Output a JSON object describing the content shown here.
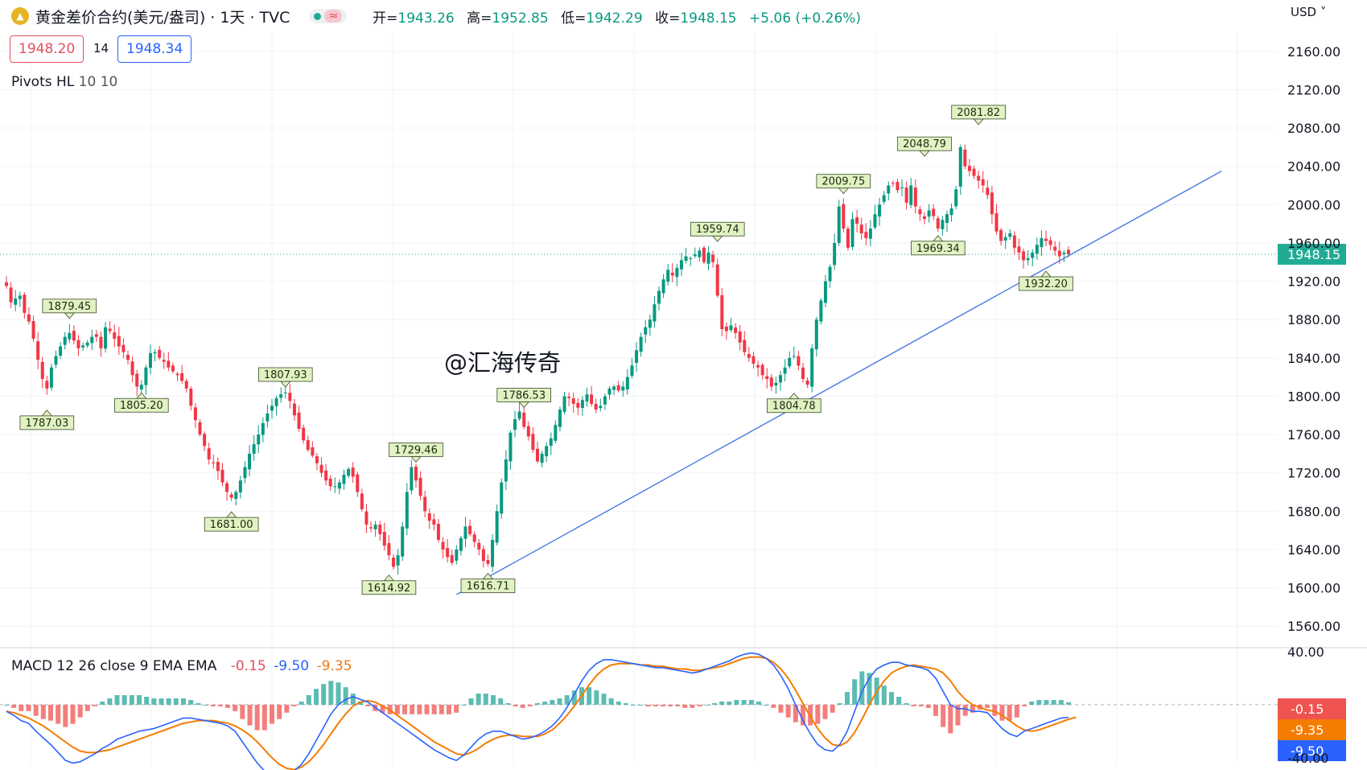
{
  "header": {
    "symbol_title": "黄金差价合约(美元/盎司) · 1天 · TVC",
    "logo_icon": "gold-coin-icon",
    "market_status_icon": "market-open-dot-icon",
    "wave_icon": "wave-icon",
    "open_label": "开=",
    "open_value": "1943.26",
    "high_label": "高=",
    "high_value": "1952.85",
    "low_label": "低=",
    "low_value": "1942.29",
    "close_label": "收=",
    "close_value": "1948.15",
    "change_value": "+5.06 (+0.26%)"
  },
  "trade": {
    "sell_price": "1948.20",
    "spread": "14",
    "buy_price": "1948.34"
  },
  "indicator": {
    "name": "Pivots HL",
    "params": "10 10"
  },
  "currency_menu": "USD ˅",
  "watermark": "@汇海传奇",
  "macd": {
    "label": "MACD 12 26 close 9 EMA EMA",
    "hist": "-0.15",
    "macd": "-9.50",
    "signal": "-9.35"
  },
  "colors": {
    "up": "#089981",
    "down": "#f23645",
    "macd_line": "#2962ff",
    "signal_line": "#f57c00",
    "trendline": "#3a6fe0",
    "pivot_bg": "#e1f2c3"
  },
  "chart_data": [
    {
      "type": "candlestick",
      "title": "黄金差价合约(美元/盎司) · 1天 · TVC",
      "ylim": [
        1540,
        2180
      ],
      "yticks": [
        "2160.00",
        "2120.00",
        "2080.00",
        "2040.00",
        "2000.00",
        "1960.00",
        "1920.00",
        "1880.00",
        "1840.00",
        "1800.00",
        "1760.00",
        "1720.00",
        "1680.00",
        "1640.00",
        "1600.00",
        "1560.00"
      ],
      "last_price": "1948.15",
      "close_path": [
        1915,
        1898,
        1902,
        1905,
        1887,
        1878,
        1860,
        1838,
        1818,
        1808,
        1830,
        1842,
        1852,
        1862,
        1866,
        1858,
        1850,
        1853,
        1856,
        1862,
        1862,
        1850,
        1872,
        1868,
        1860,
        1852,
        1846,
        1838,
        1822,
        1810,
        1812,
        1830,
        1845,
        1846,
        1840,
        1836,
        1830,
        1826,
        1822,
        1816,
        1808,
        1790,
        1775,
        1760,
        1748,
        1734,
        1730,
        1722,
        1710,
        1700,
        1694,
        1700,
        1712,
        1726,
        1740,
        1750,
        1760,
        1772,
        1782,
        1790,
        1798,
        1802,
        1804,
        1795,
        1780,
        1766,
        1754,
        1744,
        1738,
        1730,
        1720,
        1712,
        1706,
        1706,
        1710,
        1718,
        1724,
        1716,
        1700,
        1682,
        1666,
        1662,
        1666,
        1656,
        1644,
        1634,
        1622,
        1634,
        1664,
        1700,
        1726,
        1712,
        1696,
        1680,
        1670,
        1666,
        1650,
        1640,
        1632,
        1626,
        1640,
        1652,
        1664,
        1656,
        1648,
        1640,
        1628,
        1625,
        1650,
        1680,
        1710,
        1734,
        1762,
        1776,
        1784,
        1768,
        1758,
        1744,
        1732,
        1740,
        1748,
        1756,
        1770,
        1786,
        1800,
        1798,
        1792,
        1788,
        1796,
        1802,
        1792,
        1786,
        1790,
        1800,
        1808,
        1810,
        1806,
        1810,
        1820,
        1832,
        1848,
        1862,
        1872,
        1880,
        1896,
        1910,
        1922,
        1932,
        1926,
        1934,
        1942,
        1946,
        1944,
        1948,
        1952,
        1940,
        1950,
        1940,
        1905,
        1870,
        1868,
        1874,
        1866,
        1856,
        1846,
        1840,
        1834,
        1830,
        1822,
        1818,
        1810,
        1814,
        1822,
        1830,
        1840,
        1842,
        1832,
        1818,
        1812,
        1850,
        1880,
        1900,
        1920,
        1935,
        1960,
        1998,
        1975,
        1955,
        1985,
        1980,
        1970,
        1965,
        1975,
        1990,
        2000,
        2010,
        2020,
        2022,
        2015,
        2018,
        2002,
        2020,
        1998,
        1990,
        1985,
        1994,
        1988,
        1975,
        1984,
        1990,
        1996,
        2016,
        2060,
        2040,
        2035,
        2030,
        2025,
        2020,
        2010,
        1990,
        1972,
        1962,
        1966,
        1970,
        1955,
        1950,
        1942,
        1944,
        1950,
        1958,
        1965,
        1962,
        1958,
        1952,
        1946,
        1950,
        1948.15
      ],
      "pivot_labels": [
        {
          "text": "1879.45",
          "kind": "high",
          "bar": 14,
          "value": 1879.45
        },
        {
          "text": "1787.03",
          "kind": "low",
          "bar": 9,
          "value": 1787.03
        },
        {
          "text": "1805.20",
          "kind": "low",
          "bar": 30,
          "value": 1805.2
        },
        {
          "text": "1681.00",
          "kind": "low",
          "bar": 50,
          "value": 1681.0
        },
        {
          "text": "1807.93",
          "kind": "high",
          "bar": 62,
          "value": 1807.93
        },
        {
          "text": "1614.92",
          "kind": "low",
          "bar": 85,
          "value": 1614.92
        },
        {
          "text": "1729.46",
          "kind": "high",
          "bar": 91,
          "value": 1729.46
        },
        {
          "text": "1616.71",
          "kind": "low",
          "bar": 107,
          "value": 1616.71
        },
        {
          "text": "1786.53",
          "kind": "high",
          "bar": 115,
          "value": 1786.53
        },
        {
          "text": "1959.74",
          "kind": "high",
          "bar": 158,
          "value": 1959.74
        },
        {
          "text": "1804.78",
          "kind": "low",
          "bar": 175,
          "value": 1804.78
        },
        {
          "text": "2009.75",
          "kind": "high",
          "bar": 186,
          "value": 2009.75
        },
        {
          "text": "2048.79",
          "kind": "high",
          "bar": 204,
          "value": 2048.79
        },
        {
          "text": "1969.34",
          "kind": "low",
          "bar": 207,
          "value": 1969.34
        },
        {
          "text": "2081.82",
          "kind": "high",
          "bar": 216,
          "value": 2081.82
        },
        {
          "text": "1932.20",
          "kind": "low",
          "bar": 231,
          "value": 1932.2
        }
      ],
      "trendline": {
        "from": {
          "bar": 100,
          "value": 1593
        },
        "to": {
          "bar": 270,
          "value": 2035
        }
      }
    },
    {
      "type": "macd",
      "ylim": [
        -45,
        40
      ],
      "yticks": [
        "40.00",
        "-40.00"
      ],
      "macd_line": [
        -5,
        -8,
        -12,
        -14,
        -20,
        -25,
        -30,
        -36,
        -42,
        -44,
        -43,
        -40,
        -37,
        -33,
        -30,
        -26,
        -24,
        -22,
        -20,
        -19,
        -18,
        -16,
        -14,
        -12,
        -10,
        -10,
        -11,
        -12,
        -13,
        -14,
        -16,
        -20,
        -28,
        -36,
        -44,
        -50,
        -52,
        -54,
        -53,
        -50,
        -45,
        -37,
        -27,
        -17,
        -7,
        0,
        4,
        6,
        4,
        2,
        -2,
        -6,
        -10,
        -14,
        -18,
        -22,
        -26,
        -30,
        -34,
        -37,
        -40,
        -42,
        -38,
        -32,
        -26,
        -22,
        -20,
        -20,
        -22,
        -24,
        -26,
        -25,
        -23,
        -20,
        -16,
        -10,
        -2,
        8,
        18,
        26,
        31,
        34,
        34,
        33,
        32,
        31,
        30,
        29,
        28,
        28,
        27,
        26,
        25,
        24,
        25,
        27,
        29,
        31,
        33,
        36,
        38,
        39,
        38,
        35,
        30,
        22,
        12,
        0,
        -12,
        -22,
        -30,
        -34,
        -35,
        -30,
        -20,
        -5,
        10,
        20,
        27,
        30,
        32,
        32,
        30,
        29,
        28,
        26,
        20,
        10,
        0,
        -3,
        -3,
        -5,
        -5,
        -6,
        -12,
        -18,
        -22,
        -24,
        -20,
        -18,
        -16,
        -14,
        -12,
        -10,
        -9.5
      ],
      "signal_line": [
        -5,
        -6,
        -8,
        -10,
        -13,
        -16,
        -20,
        -24,
        -28,
        -32,
        -35,
        -36,
        -36,
        -35,
        -34,
        -32,
        -30,
        -28,
        -26,
        -24,
        -22,
        -20,
        -18,
        -16,
        -14,
        -13,
        -12,
        -12,
        -12,
        -13,
        -14,
        -16,
        -19,
        -23,
        -28,
        -34,
        -40,
        -45,
        -48,
        -49,
        -47,
        -43,
        -37,
        -30,
        -22,
        -14,
        -7,
        -1,
        2,
        3,
        2,
        -1,
        -4,
        -8,
        -12,
        -16,
        -20,
        -24,
        -28,
        -31,
        -34,
        -37,
        -38,
        -36,
        -33,
        -29,
        -26,
        -24,
        -23,
        -23,
        -24,
        -24,
        -24,
        -22,
        -19,
        -14,
        -8,
        -1,
        7,
        15,
        22,
        27,
        30,
        31,
        31,
        31,
        30,
        30,
        29,
        29,
        28,
        27,
        27,
        26,
        26,
        27,
        28,
        29,
        31,
        33,
        35,
        36,
        36,
        35,
        32,
        27,
        20,
        11,
        1,
        -9,
        -18,
        -25,
        -30,
        -31,
        -28,
        -21,
        -11,
        0,
        10,
        18,
        24,
        27,
        29,
        30,
        29,
        28,
        27,
        24,
        18,
        10,
        4,
        0,
        -2,
        -4,
        -5,
        -8,
        -12,
        -16,
        -19,
        -20,
        -19,
        -17,
        -15,
        -13,
        -11,
        -9.35
      ]
    }
  ]
}
